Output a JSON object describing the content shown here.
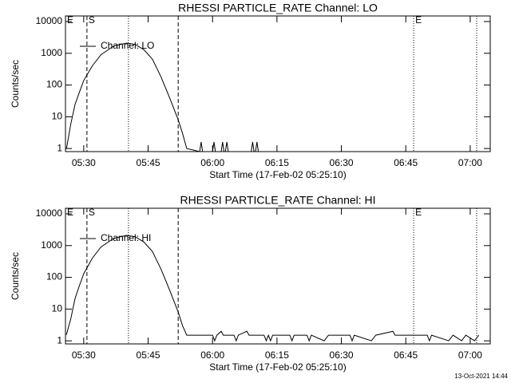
{
  "chart_data": [
    {
      "type": "line",
      "title": "RHESSI PARTICLE_RATE Channel: LO",
      "xlabel": "Start Time (17-Feb-02 05:25:10)",
      "ylabel": "Counts/sec",
      "log_y": true,
      "legend": "upper left",
      "xlim": [
        "05:25:45",
        "07:04:40"
      ],
      "xticks": [
        "05:30",
        "05:45",
        "06:00",
        "06:15",
        "06:30",
        "06:45",
        "07:00"
      ],
      "ylim": [
        0.8,
        15000
      ],
      "yticks": [
        1,
        10,
        100,
        1000,
        10000
      ],
      "markers": [
        {
          "x": "05:25:45",
          "style": "none",
          "label": "E"
        },
        {
          "x": "05:30:45",
          "style": "dashed",
          "label": "S"
        },
        {
          "x": "05:40:25",
          "style": "dotted"
        },
        {
          "x": "05:52",
          "style": "dashed"
        },
        {
          "x": "06:46:50",
          "style": "dotted",
          "label": "E"
        },
        {
          "x": "07:01:30",
          "style": "dotted"
        }
      ],
      "x": [
        "05:26",
        "05:27",
        "05:28",
        "05:29",
        "05:30",
        "05:32",
        "05:34",
        "05:37",
        "05:40",
        "05:42",
        "05:44",
        "05:46",
        "05:48",
        "05:50",
        "05:52",
        "05:53",
        "05:54",
        "05:57",
        "05:57:20",
        "05:57:40",
        "06:00",
        "06:00:20",
        "06:00:40",
        "06:02",
        "06:02:20",
        "06:02:40",
        "06:03",
        "06:03:20",
        "06:03:40",
        "06:09",
        "06:09:20",
        "06:09:40",
        "06:10",
        "06:10:20",
        "06:10:40",
        "07:04:40"
      ],
      "series": [
        {
          "name": "Channel: LO",
          "color": "#000000",
          "values": [
            1,
            6,
            25,
            60,
            140,
            400,
            900,
            1700,
            2100,
            1900,
            1300,
            650,
            180,
            40,
            8,
            3,
            1,
            0,
            1.6,
            0,
            0,
            1.6,
            0,
            0,
            1.6,
            0,
            0,
            1.6,
            0,
            0,
            1.6,
            0,
            0,
            1.6,
            0,
            0
          ]
        }
      ]
    },
    {
      "type": "line",
      "title": "RHESSI PARTICLE_RATE Channel: HI",
      "xlabel": "Start Time (17-Feb-02 05:25:10)",
      "ylabel": "Counts/sec",
      "log_y": true,
      "legend": "upper left",
      "xlim": [
        "05:25:45",
        "07:04:40"
      ],
      "xticks": [
        "05:30",
        "05:45",
        "06:00",
        "06:15",
        "06:30",
        "06:45",
        "07:00"
      ],
      "ylim": [
        0.8,
        15000
      ],
      "yticks": [
        1,
        10,
        100,
        1000,
        10000
      ],
      "markers": [
        {
          "x": "05:25:45",
          "style": "none",
          "label": "E"
        },
        {
          "x": "05:30:45",
          "style": "dashed",
          "label": "S"
        },
        {
          "x": "05:40:25",
          "style": "dotted"
        },
        {
          "x": "05:52",
          "style": "dashed"
        },
        {
          "x": "06:46:50",
          "style": "dotted",
          "label": "E"
        },
        {
          "x": "07:01:30",
          "style": "dotted"
        }
      ],
      "x": [
        "05:25:45",
        "05:26",
        "05:27",
        "05:28",
        "05:29",
        "05:30",
        "05:32",
        "05:34",
        "05:37",
        "05:40",
        "05:42",
        "05:44",
        "05:46",
        "05:48",
        "05:50",
        "05:52",
        "05:53",
        "05:54",
        "05:55",
        "06:00",
        "06:00:30",
        "06:01",
        "06:02",
        "06:02:30",
        "06:05",
        "06:05:30",
        "06:06",
        "06:08",
        "06:08:30",
        "06:12",
        "06:12:30",
        "06:13",
        "06:13:30",
        "06:14",
        "06:18",
        "06:18:30",
        "06:19",
        "06:22",
        "06:22:30",
        "06:23",
        "06:26",
        "06:27",
        "06:32",
        "06:32:30",
        "06:33",
        "06:37",
        "06:38",
        "06:42",
        "06:42:30",
        "06:50",
        "06:50:30",
        "06:51",
        "06:55",
        "06:56",
        "06:58",
        "06:59",
        "07:01",
        "07:02"
      ],
      "series": [
        {
          "name": "Channel: HI",
          "color": "#000000",
          "values": [
            1.6,
            1.6,
            5,
            22,
            55,
            130,
            400,
            900,
            1700,
            2100,
            1900,
            1300,
            650,
            180,
            40,
            8,
            3,
            1.5,
            1.5,
            1.5,
            1,
            1.5,
            2,
            1.5,
            1.5,
            1,
            1.5,
            2,
            1.5,
            1.5,
            1,
            1.5,
            1,
            1.5,
            1.5,
            1,
            1.5,
            1.5,
            1,
            1.5,
            1,
            1.5,
            1.5,
            1,
            1.5,
            1,
            1.5,
            2,
            1.5,
            1.5,
            1,
            1.5,
            1,
            1.5,
            1,
            1.5,
            1,
            1.5
          ]
        }
      ]
    }
  ],
  "footer": "13-Oct-2021 14:44"
}
